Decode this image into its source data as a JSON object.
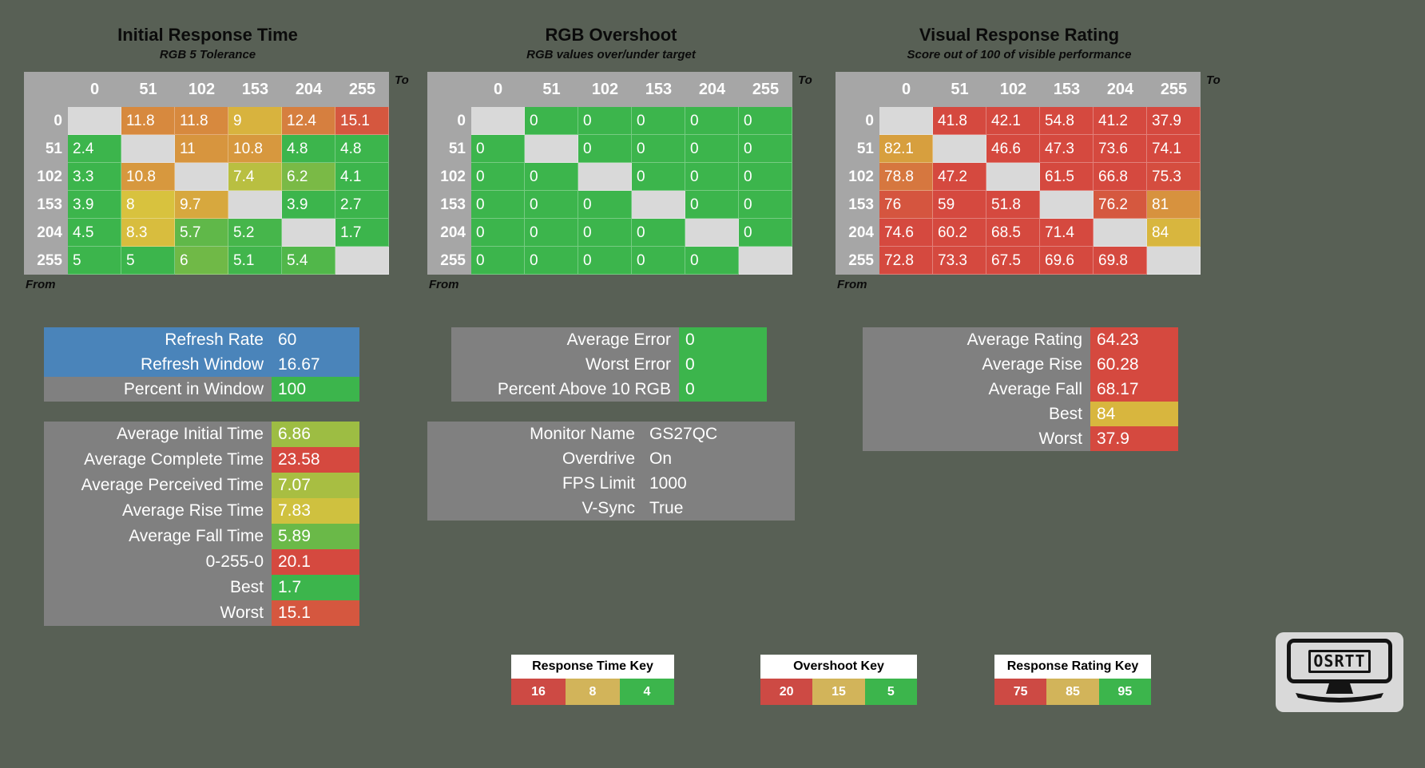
{
  "background": "#586055",
  "palette": {
    "green": "#3cb54c",
    "yellow": "#d8c23e",
    "red": "#d5493f",
    "key_red": "#cd4a44",
    "key_gold": "#d2b45a",
    "header_gray": "#a6a6a6",
    "diagonal_gray": "#d9d9d9",
    "panel_gray": "#808080",
    "panel_blue": "#4a84ba"
  },
  "axis": {
    "to_label": "To",
    "from_label": "From"
  },
  "logo": {
    "text": "OSRTT"
  },
  "chart_data": {
    "type": "heatmap",
    "scales": {
      "time": {
        "green": 5,
        "yellow": 8,
        "red": 16
      },
      "overshoot": {
        "green": 5,
        "yellow": 15,
        "red": 20
      },
      "rating": {
        "green": 95,
        "yellow": 85,
        "red": 75
      }
    },
    "heatmaps": [
      {
        "id": "initial-response-time",
        "title": "Initial Response Time",
        "subtitle": "RGB 5 Tolerance",
        "scale": "time",
        "columns": [
          "0",
          "51",
          "102",
          "153",
          "204",
          "255"
        ],
        "rows": [
          "0",
          "51",
          "102",
          "153",
          "204",
          "255"
        ],
        "values": [
          [
            null,
            11.8,
            11.8,
            9,
            12.4,
            15.1
          ],
          [
            2.4,
            null,
            11,
            10.8,
            4.8,
            4.8
          ],
          [
            3.3,
            10.8,
            null,
            7.4,
            6.2,
            4.1
          ],
          [
            3.9,
            8,
            9.7,
            null,
            3.9,
            2.7
          ],
          [
            4.5,
            8.3,
            5.7,
            5.2,
            null,
            1.7
          ],
          [
            5,
            5,
            6,
            5.1,
            5.4,
            null
          ]
        ]
      },
      {
        "id": "rgb-overshoot",
        "title": "RGB Overshoot",
        "subtitle": "RGB values over/under target",
        "scale": "overshoot",
        "columns": [
          "0",
          "51",
          "102",
          "153",
          "204",
          "255"
        ],
        "rows": [
          "0",
          "51",
          "102",
          "153",
          "204",
          "255"
        ],
        "values": [
          [
            null,
            0,
            0,
            0,
            0,
            0
          ],
          [
            0,
            null,
            0,
            0,
            0,
            0
          ],
          [
            0,
            0,
            null,
            0,
            0,
            0
          ],
          [
            0,
            0,
            0,
            null,
            0,
            0
          ],
          [
            0,
            0,
            0,
            0,
            null,
            0
          ],
          [
            0,
            0,
            0,
            0,
            0,
            null
          ]
        ]
      },
      {
        "id": "visual-response-rating",
        "title": "Visual Response Rating",
        "subtitle": "Score out of 100 of visible performance",
        "scale": "rating",
        "columns": [
          "0",
          "51",
          "102",
          "153",
          "204",
          "255"
        ],
        "rows": [
          "0",
          "51",
          "102",
          "153",
          "204",
          "255"
        ],
        "values": [
          [
            null,
            41.8,
            42.1,
            54.8,
            41.2,
            37.9
          ],
          [
            82.1,
            null,
            46.6,
            47.3,
            73.6,
            74.1
          ],
          [
            78.8,
            47.2,
            null,
            61.5,
            66.8,
            75.3
          ],
          [
            76,
            59,
            51.8,
            null,
            76.2,
            81
          ],
          [
            74.6,
            60.2,
            68.5,
            71.4,
            null,
            84
          ],
          [
            72.8,
            73.3,
            67.5,
            69.6,
            69.8,
            null
          ]
        ]
      }
    ],
    "summary_panels": [
      {
        "id": "refresh-panel",
        "rows": [
          {
            "label": "Refresh Rate",
            "value": 60,
            "cell": "blue"
          },
          {
            "label": "Refresh Window",
            "value": 16.67,
            "cell": "blue"
          },
          {
            "label": "Percent in Window",
            "value": 100,
            "cell": "green"
          }
        ]
      },
      {
        "id": "response-stats-panel",
        "rows": [
          {
            "label": "Average Initial Time",
            "value": 6.86,
            "scale": "time"
          },
          {
            "label": "Average Complete Time",
            "value": 23.58,
            "scale": "time"
          },
          {
            "label": "Average Perceived Time",
            "value": 7.07,
            "scale": "time"
          },
          {
            "label": "Average Rise Time",
            "value": 7.83,
            "scale": "time"
          },
          {
            "label": "Average Fall Time",
            "value": 5.89,
            "scale": "time"
          },
          {
            "label": "0-255-0",
            "value": 20.1,
            "scale": "time"
          },
          {
            "label": "Best",
            "value": 1.7,
            "scale": "time"
          },
          {
            "label": "Worst",
            "value": 15.1,
            "scale": "time"
          }
        ]
      },
      {
        "id": "overshoot-stats-panel",
        "rows": [
          {
            "label": "Average Error",
            "value": 0,
            "scale": "overshoot"
          },
          {
            "label": "Worst Error",
            "value": 0,
            "scale": "overshoot"
          },
          {
            "label": "Percent Above 10 RGB",
            "value": 0,
            "scale": "overshoot"
          }
        ]
      },
      {
        "id": "monitor-info-panel",
        "plain": true,
        "rows": [
          {
            "label": "Monitor Name",
            "value": "GS27QC"
          },
          {
            "label": "Overdrive",
            "value": "On"
          },
          {
            "label": "FPS Limit",
            "value": 1000
          },
          {
            "label": "V-Sync",
            "value": "True"
          }
        ]
      },
      {
        "id": "rating-stats-panel",
        "rows": [
          {
            "label": "Average Rating",
            "value": 64.23,
            "scale": "rating"
          },
          {
            "label": "Average Rise",
            "value": 60.28,
            "scale": "rating"
          },
          {
            "label": "Average Fall",
            "value": 68.17,
            "scale": "rating"
          },
          {
            "label": "Best",
            "value": 84,
            "scale": "rating"
          },
          {
            "label": "Worst",
            "value": 37.9,
            "scale": "rating"
          }
        ]
      }
    ],
    "keys": [
      {
        "id": "response-time-key",
        "title": "Response Time Key",
        "cells": [
          "16",
          "8",
          "4"
        ]
      },
      {
        "id": "overshoot-key",
        "title": "Overshoot Key",
        "cells": [
          "20",
          "15",
          "5"
        ]
      },
      {
        "id": "response-rating-key",
        "title": "Response Rating Key",
        "cells": [
          "75",
          "85",
          "95"
        ]
      }
    ]
  }
}
